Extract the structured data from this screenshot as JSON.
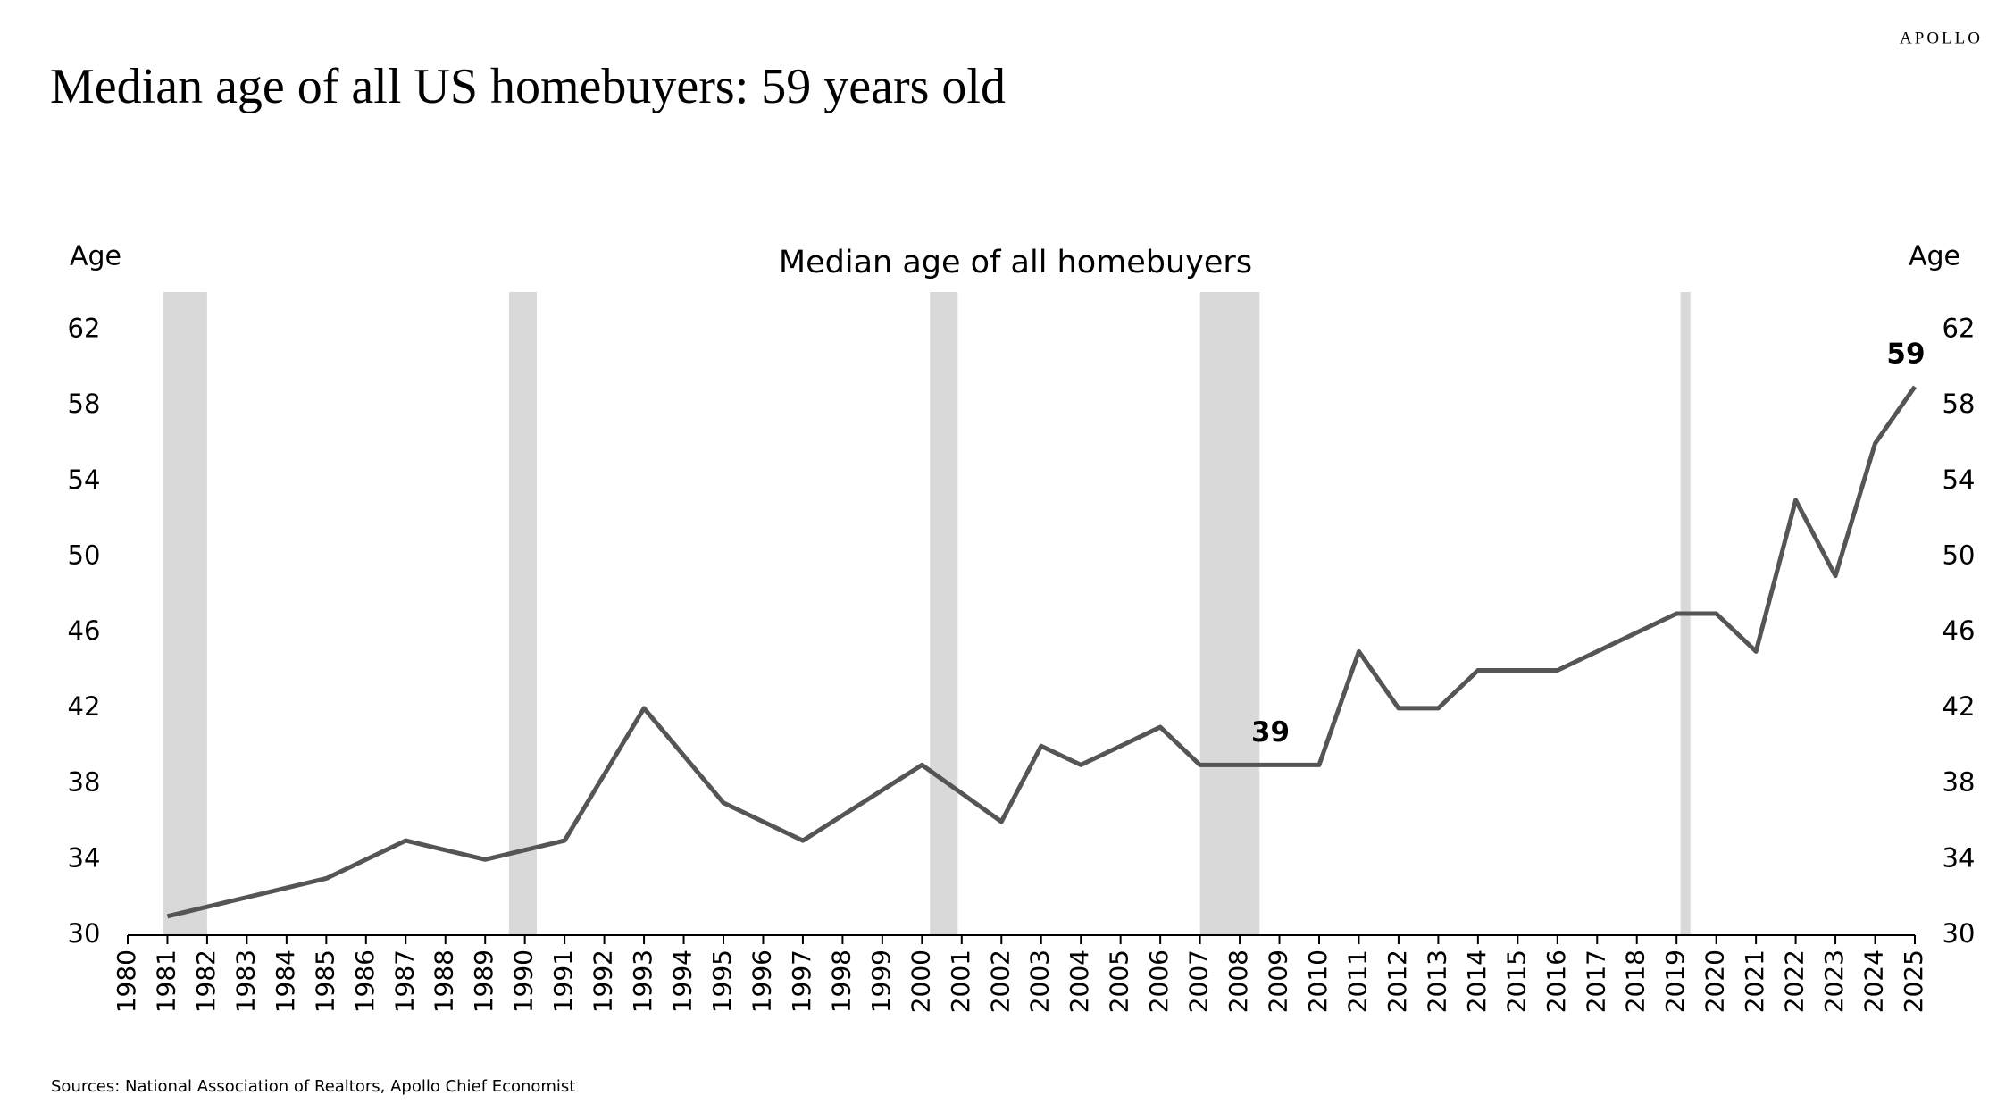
{
  "brand": "APOLLO",
  "headline": "Median age of all US homebuyers: 59 years old",
  "source": "Sources: National Association of Realtors, Apollo Chief Economist",
  "chart_data": {
    "type": "line",
    "title": "Median age of all homebuyers",
    "y_label": "Age",
    "y2_label": "Age",
    "x": [
      1981,
      1985,
      1987,
      1989,
      1991,
      1993,
      1995,
      1997,
      2000,
      2002,
      2003,
      2004,
      2006,
      2007,
      2008,
      2009,
      2010,
      2011,
      2012,
      2013,
      2014,
      2015,
      2016,
      2017,
      2018,
      2019,
      2020,
      2021,
      2022,
      2023,
      2024,
      2025
    ],
    "series": [
      {
        "name": "Median age of all homebuyers",
        "color": "#555555",
        "values": [
          31,
          33,
          35,
          34,
          35,
          42,
          37,
          35,
          39,
          36,
          40,
          39,
          41,
          39,
          39,
          39,
          39,
          45,
          42,
          42,
          44,
          44,
          44,
          45,
          46,
          47,
          47,
          45,
          53,
          49,
          56,
          59
        ]
      }
    ],
    "annotations": [
      {
        "text": "39",
        "x": 2009,
        "y": 39
      },
      {
        "text": "59",
        "x": 2025,
        "y": 59
      }
    ],
    "recessions": [
      [
        1980.9,
        1982.0
      ],
      [
        1989.6,
        1990.3
      ],
      [
        2000.2,
        2000.9
      ],
      [
        2007.0,
        2008.5
      ],
      [
        2019.1,
        2019.35
      ]
    ],
    "recession_color": "#d9d9d9",
    "xlim": [
      1980,
      2025
    ],
    "xticks": [
      1980,
      1981,
      1982,
      1983,
      1984,
      1985,
      1986,
      1987,
      1988,
      1989,
      1990,
      1991,
      1992,
      1993,
      1994,
      1995,
      1996,
      1997,
      1998,
      1999,
      2000,
      2001,
      2002,
      2003,
      2004,
      2005,
      2006,
      2007,
      2008,
      2009,
      2010,
      2011,
      2012,
      2013,
      2014,
      2015,
      2016,
      2017,
      2018,
      2019,
      2020,
      2021,
      2022,
      2023,
      2024,
      2025
    ],
    "ylim": [
      30,
      64
    ],
    "yticks": [
      30,
      34,
      38,
      42,
      46,
      50,
      54,
      58,
      62
    ],
    "y2lim": [
      30,
      64
    ],
    "y2ticks": [
      30,
      34,
      38,
      42,
      46,
      50,
      54,
      58,
      62
    ],
    "grid": false
  }
}
